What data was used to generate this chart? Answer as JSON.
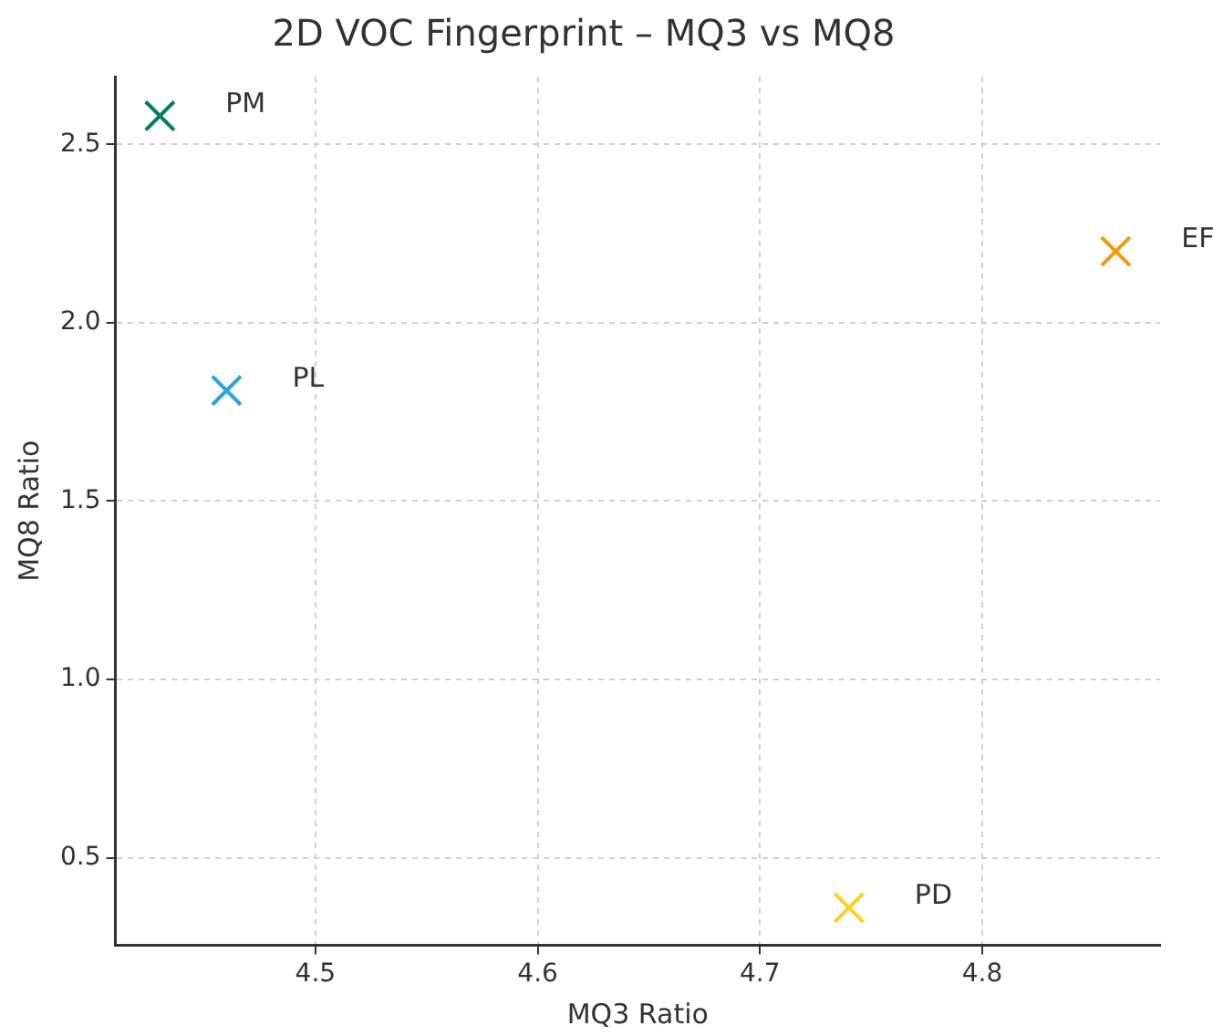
{
  "chart_data": {
    "type": "scatter",
    "title": "2D VOC Fingerprint – MQ3 vs MQ8",
    "xlabel": "MQ3 Ratio",
    "ylabel": "MQ8 Ratio",
    "series": [
      {
        "name": "PM",
        "color": "#00805f",
        "x": [
          4.43
        ],
        "values": [
          2.58
        ]
      },
      {
        "name": "PL",
        "color": "#2aa3e6",
        "x": [
          4.46
        ],
        "values": [
          1.81
        ]
      },
      {
        "name": "EF",
        "color": "#f59b00",
        "x": [
          4.86
        ],
        "values": [
          2.2
        ]
      },
      {
        "name": "PD",
        "color": "#ffd21f",
        "x": [
          4.74
        ],
        "values": [
          0.36
        ]
      }
    ],
    "xlim": [
      4.41,
      4.88
    ],
    "xticks": [
      4.5,
      4.6,
      4.7,
      4.8
    ],
    "ylim": [
      0.255,
      2.69
    ],
    "yticks": [
      0.5,
      {
        "value": 1,
        "label": "1.0"
      },
      1.5,
      {
        "value": 2,
        "label": "2.0"
      },
      2.5
    ],
    "grid": true,
    "legend": false,
    "marker": "cross"
  }
}
